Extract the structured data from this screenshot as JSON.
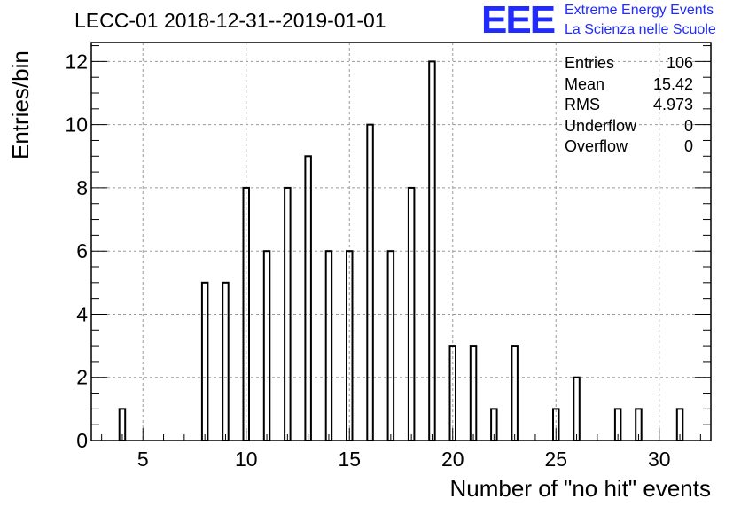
{
  "title": "LECC-01 2018-12-31--2019-01-01",
  "logo": {
    "mark": "EEE",
    "line1": "Extreme Energy Events",
    "line2": "La Scienza nelle Scuole",
    "color": "#1f2bff"
  },
  "stats": [
    {
      "label": "Entries",
      "value": "106"
    },
    {
      "label": "Mean",
      "value": "15.42"
    },
    {
      "label": "RMS",
      "value": "4.973"
    },
    {
      "label": "Underflow",
      "value": "0"
    },
    {
      "label": "Overflow",
      "value": "0"
    }
  ],
  "chart_data": {
    "type": "bar",
    "title": "LECC-01 2018-12-31--2019-01-01",
    "xlabel": "Number of \"no hit\" events",
    "ylabel": "Entries/bin",
    "xlim": [
      2.5,
      32.5
    ],
    "ylim": [
      0,
      12.6
    ],
    "x_ticks": [
      5,
      10,
      15,
      20,
      25,
      30
    ],
    "y_ticks": [
      0,
      2,
      4,
      6,
      8,
      10,
      12
    ],
    "grid": true,
    "x": [
      4,
      8,
      9,
      10,
      11,
      12,
      13,
      14,
      15,
      16,
      17,
      18,
      19,
      20,
      21,
      22,
      23,
      25,
      26,
      28,
      29,
      31
    ],
    "values": [
      1,
      5,
      5,
      8,
      6,
      8,
      9,
      6,
      6,
      10,
      6,
      8,
      12,
      3,
      3,
      1,
      3,
      1,
      2,
      1,
      1,
      1
    ],
    "stats_placement": "top-right"
  }
}
